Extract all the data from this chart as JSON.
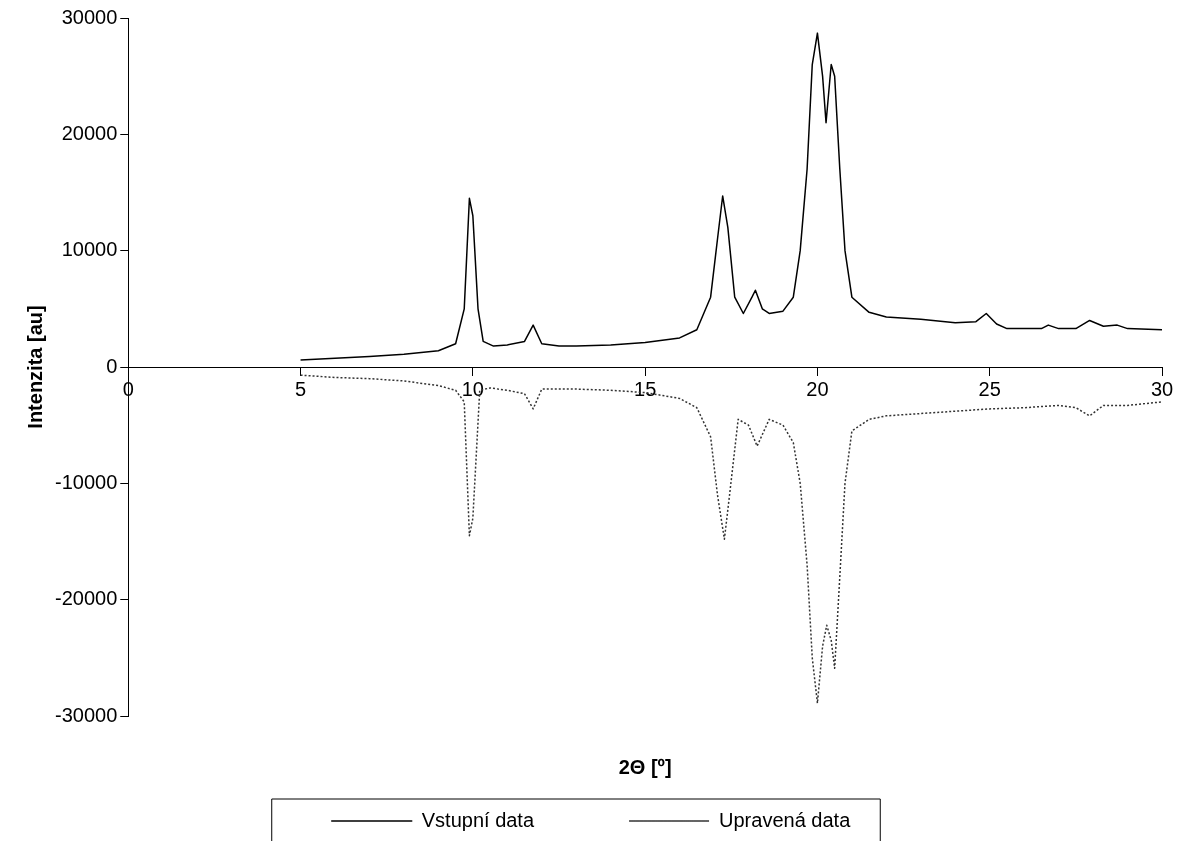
{
  "chart_data": {
    "type": "line",
    "xlabel": "2Θ [º]",
    "ylabel": "Intenzita [au]",
    "xlim": [
      0,
      30
    ],
    "xticks": [
      0,
      5,
      10,
      15,
      20,
      25,
      30
    ],
    "ylim": [
      -30000,
      30000
    ],
    "yticks": [
      -30000,
      -20000,
      -10000,
      0,
      10000,
      20000,
      30000
    ],
    "grid": false,
    "legend": "bottom",
    "marker": "none",
    "series": [
      {
        "name": "Vstupní data",
        "color": "#000000",
        "line_style": "solid",
        "x": [
          5,
          6,
          7,
          8,
          9,
          9.5,
          9.75,
          9.9,
          10,
          10.15,
          10.3,
          10.6,
          11,
          11.5,
          11.75,
          12,
          12.5,
          13,
          14,
          15,
          16,
          16.5,
          16.9,
          17.1,
          17.25,
          17.4,
          17.6,
          17.85,
          18.1,
          18.2,
          18.4,
          18.6,
          19,
          19.3,
          19.5,
          19.7,
          19.85,
          20,
          20.15,
          20.25,
          20.4,
          20.5,
          20.65,
          20.8,
          21,
          21.5,
          22,
          23,
          24,
          24.6,
          24.9,
          25.2,
          25.5,
          26.5,
          26.7,
          27,
          27.5,
          27.9,
          28.3,
          28.7,
          29,
          30
        ],
        "values": [
          600,
          750,
          900,
          1100,
          1400,
          2000,
          5000,
          14500,
          13000,
          5000,
          2200,
          1800,
          1900,
          2200,
          3600,
          2000,
          1800,
          1800,
          1900,
          2100,
          2500,
          3200,
          6000,
          11000,
          14700,
          12000,
          6000,
          4600,
          6000,
          6600,
          5000,
          4600,
          4800,
          6000,
          10000,
          17000,
          26000,
          28700,
          25000,
          21000,
          26000,
          25000,
          17000,
          10000,
          6000,
          4700,
          4300,
          4100,
          3800,
          3900,
          4600,
          3700,
          3300,
          3300,
          3600,
          3300,
          3300,
          4000,
          3500,
          3600,
          3300,
          3200
        ]
      },
      {
        "name": "Upravená data",
        "color": "#333333",
        "line_style": "dotted",
        "x": [
          5,
          6,
          7,
          8,
          9,
          9.5,
          9.75,
          9.9,
          10,
          10.2,
          10.5,
          11,
          11.5,
          11.75,
          12,
          13,
          14,
          15,
          16,
          16.5,
          16.9,
          17.1,
          17.3,
          17.45,
          17.7,
          18,
          18.25,
          18.6,
          19,
          19.3,
          19.5,
          19.7,
          19.85,
          20,
          20.15,
          20.27,
          20.4,
          20.5,
          20.65,
          20.8,
          21,
          21.5,
          22,
          23,
          24,
          25,
          26,
          27,
          27.5,
          27.9,
          28.3,
          29,
          30
        ],
        "values": [
          -700,
          -900,
          -1000,
          -1200,
          -1600,
          -2000,
          -3000,
          -14500,
          -13000,
          -2000,
          -1800,
          -2000,
          -2300,
          -3600,
          -1900,
          -1900,
          -2000,
          -2200,
          -2700,
          -3500,
          -6000,
          -11000,
          -14800,
          -11000,
          -4500,
          -5000,
          -6800,
          -4500,
          -5000,
          -6500,
          -10000,
          -17000,
          -25000,
          -28900,
          -24000,
          -22200,
          -23500,
          -25900,
          -18000,
          -10000,
          -5500,
          -4500,
          -4200,
          -4000,
          -3800,
          -3600,
          -3500,
          -3300,
          -3500,
          -4200,
          -3300,
          -3300,
          -3000
        ]
      }
    ]
  }
}
